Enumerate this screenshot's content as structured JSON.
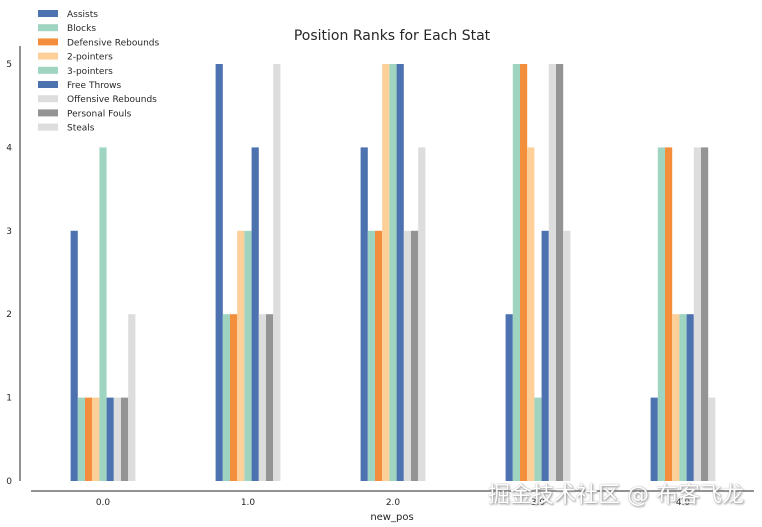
{
  "chart_data": {
    "type": "bar",
    "title": "Position Ranks for Each Stat",
    "xlabel": "new_pos",
    "ylabel": "",
    "categories": [
      "0.0",
      "1.0",
      "2.0",
      "3.0",
      "4.0"
    ],
    "ylim": [
      0,
      5.2
    ],
    "yticks": [
      0,
      1,
      2,
      3,
      4,
      5
    ],
    "legend_position": "top-left",
    "grid": false,
    "series": [
      {
        "name": "Assists",
        "color": "#4c72b0",
        "values": [
          3,
          5,
          4,
          2,
          1
        ]
      },
      {
        "name": "Blocks",
        "color": "#9fd4c0",
        "values": [
          1,
          2,
          3,
          5,
          4
        ]
      },
      {
        "name": "Defensive Rebounds",
        "color": "#f28e3c",
        "values": [
          1,
          2,
          3,
          5,
          4
        ]
      },
      {
        "name": "2-pointers",
        "color": "#fdcf99",
        "values": [
          1,
          3,
          5,
          4,
          2
        ]
      },
      {
        "name": "3-pointers",
        "color": "#9fd4c0",
        "values": [
          4,
          3,
          5,
          1,
          2
        ]
      },
      {
        "name": "Free Throws",
        "color": "#4c72b0",
        "values": [
          1,
          4,
          5,
          3,
          2
        ]
      },
      {
        "name": "Offensive Rebounds",
        "color": "#dddddd",
        "values": [
          1,
          2,
          3,
          5,
          4
        ]
      },
      {
        "name": "Personal Fouls",
        "color": "#949494",
        "values": [
          1,
          2,
          3,
          5,
          4
        ]
      },
      {
        "name": "Steals",
        "color": "#dddddd",
        "values": [
          2,
          5,
          4,
          3,
          1
        ]
      }
    ]
  },
  "watermark": "掘金技术社区 @ 布客飞龙"
}
